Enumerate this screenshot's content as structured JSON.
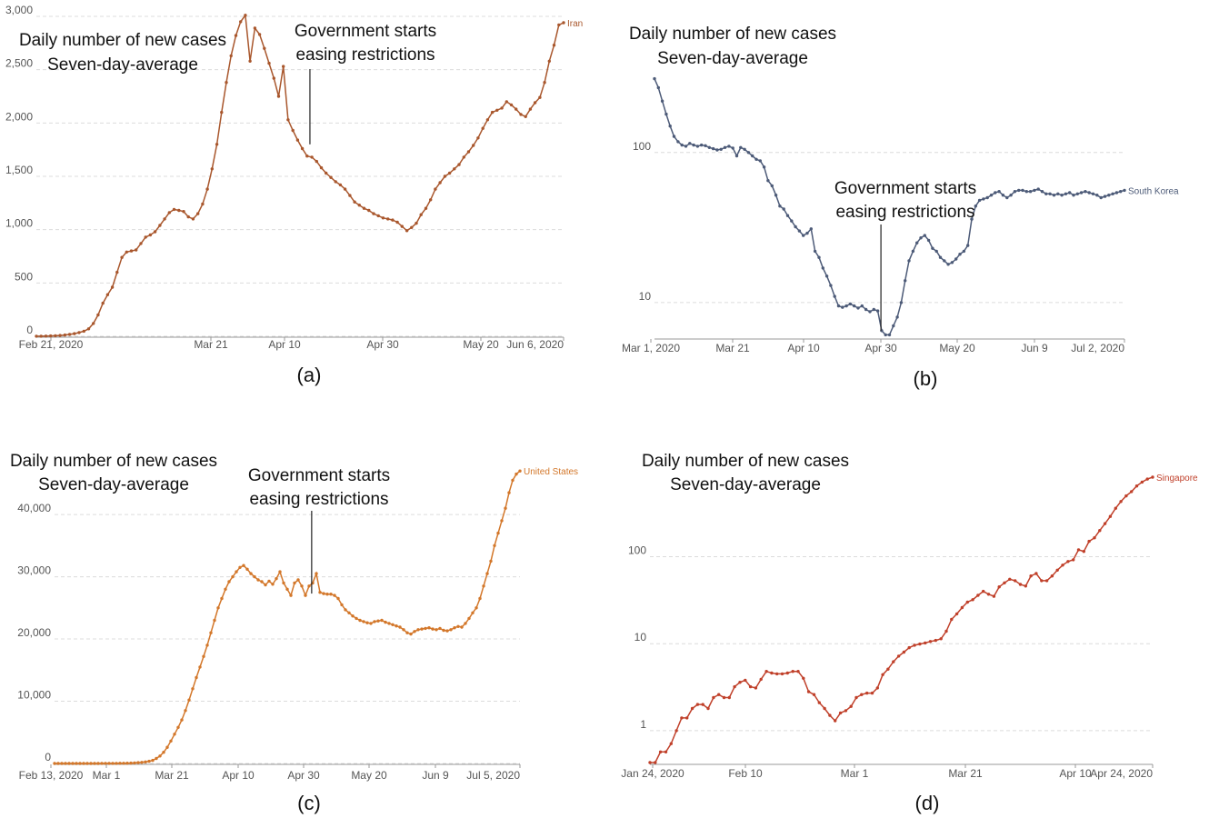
{
  "chart_data": [
    {
      "id": "a",
      "type": "line",
      "panel_label": "(a)",
      "color": "#a9572d",
      "series": [
        {
          "name": "Iran",
          "start": "2020-02-21",
          "end": "2020-06-06",
          "values": [
            1,
            1,
            2,
            3,
            5,
            8,
            12,
            18,
            25,
            35,
            48,
            70,
            120,
            200,
            310,
            390,
            460,
            600,
            740,
            790,
            800,
            810,
            870,
            930,
            950,
            980,
            1040,
            1100,
            1160,
            1190,
            1180,
            1170,
            1120,
            1100,
            1150,
            1240,
            1380,
            1570,
            1800,
            2100,
            2380,
            2630,
            2820,
            2950,
            3010,
            2580,
            2890,
            2830,
            2700,
            2560,
            2420,
            2250,
            2530,
            2030,
            1930,
            1840,
            1760,
            1690,
            1680,
            1640,
            1580,
            1530,
            1490,
            1450,
            1420,
            1380,
            1320,
            1260,
            1230,
            1200,
            1180,
            1150,
            1130,
            1110,
            1100,
            1090,
            1070,
            1030,
            990,
            1020,
            1060,
            1140,
            1200,
            1280,
            1380,
            1440,
            1500,
            1530,
            1570,
            1610,
            1680,
            1730,
            1790,
            1860,
            1950,
            2030,
            2100,
            2120,
            2140,
            2200,
            2170,
            2130,
            2080,
            2060,
            2130,
            2190,
            2240,
            2380,
            2580,
            2730,
            2920,
            2940
          ]
        }
      ],
      "x_ticks": [
        "Feb 21, 2020",
        "Mar 21",
        "Apr 10",
        "Apr 30",
        "May 20",
        "Jun 6, 2020"
      ],
      "y_ticks": [
        "0",
        "500",
        "1,000",
        "1,500",
        "2,000",
        "2,500",
        "3,000"
      ],
      "y_tick_values": [
        0,
        500,
        1000,
        1500,
        2000,
        2500,
        3000
      ],
      "ylim": [
        0,
        3000
      ],
      "yscale": "linear",
      "ylabel_lines": [
        "Daily number of new cases",
        "Seven-day-average"
      ],
      "annotation_lines": [
        "Government starts",
        "easing restrictions"
      ],
      "annotation_date": "2020-04-16",
      "annotation_value": 1800
    },
    {
      "id": "b",
      "type": "line",
      "panel_label": "(b)",
      "color": "#4d5b78",
      "series": [
        {
          "name": "South Korea",
          "start": "2020-03-14",
          "end": "2020-07-02",
          "values": [
            310,
            270,
            220,
            180,
            150,
            128,
            118,
            112,
            110,
            115,
            112,
            110,
            112,
            111,
            108,
            106,
            104,
            105,
            108,
            110,
            107,
            95,
            108,
            105,
            100,
            95,
            90,
            88,
            80,
            65,
            60,
            52,
            44,
            42,
            38,
            35,
            32,
            30,
            28,
            29,
            31,
            22,
            20,
            17,
            15,
            13,
            11,
            9.5,
            9.3,
            9.5,
            9.8,
            9.5,
            9.2,
            9.5,
            9.0,
            8.7,
            9.0,
            8.8,
            6.5,
            6.1,
            6.1,
            7.0,
            8.0,
            10,
            14,
            19,
            22,
            25,
            27,
            28,
            26,
            23,
            22,
            20,
            19,
            18,
            18.5,
            19.5,
            21,
            22,
            24,
            36,
            44,
            48,
            49,
            50,
            52,
            54,
            55,
            52,
            50,
            52,
            55,
            56,
            56,
            55,
            55,
            56,
            57,
            55,
            53,
            53,
            52,
            53,
            52,
            53,
            54,
            52,
            53,
            54,
            55,
            54,
            53,
            52,
            50,
            51,
            52,
            53,
            54,
            55,
            56
          ]
        }
      ],
      "x_ticks": [
        "Mar 1, 2020",
        "Mar 21",
        "Apr 10",
        "Apr 30",
        "May 20",
        "Jun 9",
        "Jul 2, 2020"
      ],
      "y_ticks": [
        "10",
        "100"
      ],
      "y_tick_values": [
        10,
        100
      ],
      "ylim": [
        5.8,
        340
      ],
      "yscale": "log",
      "ylabel_lines": [
        "Daily number of new cases",
        "Seven-day-average"
      ],
      "annotation_lines": [
        "Government starts",
        "easing restrictions"
      ],
      "annotation_date": "2020-05-06",
      "annotation_value": 6.5
    },
    {
      "id": "c",
      "type": "line",
      "panel_label": "(c)",
      "color": "#d3772a",
      "series": [
        {
          "name": "United States",
          "start": "2020-02-13",
          "end": "2020-07-05",
          "values": [
            1,
            2,
            2,
            2,
            3,
            3,
            3,
            3,
            3,
            3,
            4,
            5,
            6,
            8,
            10,
            12,
            15,
            20,
            25,
            30,
            40,
            60,
            90,
            130,
            180,
            250,
            350,
            500,
            800,
            1200,
            1800,
            2600,
            3600,
            4700,
            5800,
            7000,
            8500,
            10200,
            12000,
            13800,
            15500,
            17200,
            19000,
            21000,
            23000,
            25000,
            26500,
            28000,
            29200,
            30000,
            30800,
            31500,
            31800,
            31200,
            30500,
            30000,
            29500,
            29200,
            28700,
            29300,
            28800,
            29700,
            30800,
            29000,
            28000,
            27000,
            29000,
            29500,
            28500,
            27000,
            28500,
            29000,
            30500,
            27500,
            27300,
            27200,
            27200,
            27000,
            26500,
            25500,
            24700,
            24200,
            23700,
            23300,
            23000,
            22800,
            22600,
            22500,
            22800,
            22900,
            23000,
            22700,
            22500,
            22300,
            22100,
            21900,
            21500,
            21000,
            20800,
            21200,
            21500,
            21600,
            21700,
            21800,
            21600,
            21500,
            21700,
            21400,
            21300,
            21500,
            21800,
            22000,
            21900,
            22500,
            23300,
            24200,
            25000,
            26500,
            28500,
            30500,
            32500,
            35000,
            37000,
            39000,
            41000,
            43500,
            45500,
            46500,
            47000
          ]
        }
      ],
      "x_ticks": [
        "Feb 13, 2020",
        "Mar 1",
        "Mar 21",
        "Apr 10",
        "Apr 30",
        "May 20",
        "Jun 9",
        "Jul 5, 2020"
      ],
      "y_ticks": [
        "0",
        "10,000",
        "20,000",
        "30,000",
        "40,000"
      ],
      "y_tick_values": [
        0,
        10000,
        20000,
        30000,
        40000
      ],
      "ylim": [
        0,
        46000
      ],
      "yscale": "linear",
      "ylabel_lines": [
        "Daily number of new cases",
        "Seven-day-average"
      ],
      "annotation_lines": [
        "Government starts",
        "easing restrictions"
      ],
      "annotation_date": "2020-05-02",
      "annotation_value": 27300
    },
    {
      "id": "d",
      "type": "line",
      "panel_label": "(d)",
      "color": "#c0402a",
      "series": [
        {
          "name": "Singapore",
          "start": "2020-01-24",
          "end": "2020-04-24",
          "values": [
            0.43,
            0.43,
            0.57,
            0.57,
            0.71,
            1.0,
            1.4,
            1.4,
            1.8,
            2.0,
            2.0,
            1.8,
            2.4,
            2.6,
            2.4,
            2.4,
            3.2,
            3.6,
            3.8,
            3.2,
            3.1,
            3.9,
            4.8,
            4.6,
            4.5,
            4.5,
            4.6,
            4.8,
            4.8,
            4.0,
            2.8,
            2.6,
            2.1,
            1.8,
            1.5,
            1.3,
            1.6,
            1.7,
            1.9,
            2.4,
            2.6,
            2.7,
            2.7,
            3.1,
            4.4,
            5.1,
            6.2,
            7.2,
            8.0,
            9.0,
            9.6,
            9.9,
            10.2,
            10.6,
            10.9,
            11.4,
            13.9,
            19,
            22,
            26,
            30,
            32,
            36,
            40,
            37,
            35,
            45,
            50,
            55,
            53,
            48,
            46,
            60,
            64,
            53,
            53,
            60,
            70,
            80,
            88,
            92,
            120,
            115,
            150,
            165,
            200,
            240,
            290,
            360,
            430,
            500,
            560,
            650,
            720,
            780,
            820
          ]
        }
      ],
      "x_ticks": [
        "Jan 24, 2020",
        "Feb 10",
        "Mar 1",
        "Mar 21",
        "Apr 10",
        "Apr 24, 2020"
      ],
      "y_ticks": [
        "1",
        "10",
        "100"
      ],
      "y_tick_values": [
        1,
        10,
        100
      ],
      "ylim": [
        0.42,
        820
      ],
      "yscale": "log",
      "ylabel_lines": [
        "Daily number of new cases",
        "Seven-day-average"
      ]
    }
  ]
}
